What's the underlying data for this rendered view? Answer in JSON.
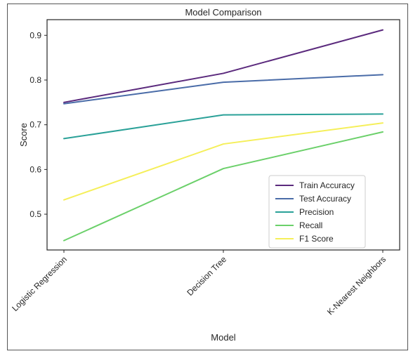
{
  "chart_data": {
    "type": "line",
    "title": "Model Comparison",
    "xlabel": "Model",
    "ylabel": "Score",
    "categories": [
      "Logistic Regression",
      "Decision Tree",
      "K-Nearest Neighbors"
    ],
    "yticks": [
      0.5,
      0.6,
      0.7,
      0.8,
      0.9
    ],
    "ylim": [
      0.42,
      0.935
    ],
    "grid": false,
    "legend_position": "lower-right",
    "series": [
      {
        "name": "Train Accuracy",
        "color": "#5b2a7d",
        "values": [
          0.75,
          0.815,
          0.912
        ]
      },
      {
        "name": "Test Accuracy",
        "color": "#4a6ca8",
        "values": [
          0.747,
          0.795,
          0.812
        ]
      },
      {
        "name": "Precision",
        "color": "#2aa198",
        "values": [
          0.669,
          0.722,
          0.724
        ]
      },
      {
        "name": "Recall",
        "color": "#6bd06a",
        "values": [
          0.441,
          0.602,
          0.684
        ]
      },
      {
        "name": "F1 Score",
        "color": "#f5ef5a",
        "values": [
          0.532,
          0.657,
          0.704
        ]
      }
    ]
  }
}
